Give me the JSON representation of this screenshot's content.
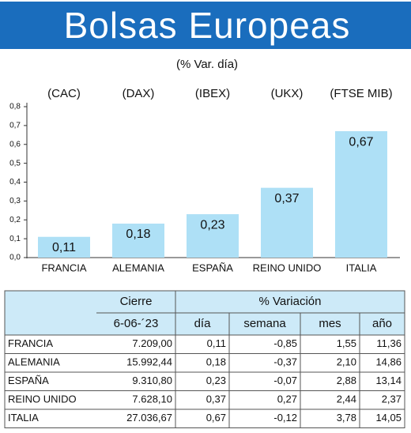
{
  "chart_data": {
    "type": "bar",
    "title": "Bolsas Europeas",
    "subtitle": "(% Var. día)",
    "indices": [
      "(CAC)",
      "(DAX)",
      "(IBEX)",
      "(UKX)",
      "(FTSE MIB)"
    ],
    "categories": [
      "FRANCIA",
      "ALEMANIA",
      "ESPAÑA",
      "REINO UNIDO",
      "ITALIA"
    ],
    "values": [
      0.11,
      0.18,
      0.23,
      0.37,
      0.67
    ],
    "value_labels": [
      "0,11",
      "0,18",
      "0,23",
      "0,37",
      "0,67"
    ],
    "color": "#aee0f6",
    "ylim": [
      0,
      0.8
    ],
    "yticks": [
      {
        "value": 0,
        "label": "0,0"
      },
      {
        "value": 0.1,
        "label": "0,1"
      },
      {
        "value": 0.2,
        "label": "0,2"
      },
      {
        "value": 0.3,
        "label": "0,3"
      },
      {
        "value": 0.4,
        "label": "0,4"
      },
      {
        "value": 0.5,
        "label": "0,5"
      },
      {
        "value": 0.6,
        "label": "0,6"
      },
      {
        "value": 0.7,
        "label": "0,7"
      },
      {
        "value": 0.8,
        "label": "0,8"
      }
    ]
  },
  "table": {
    "group_headers": [
      "Cierre",
      "% Variación"
    ],
    "headers": [
      "6-06-´23",
      "día",
      "semana",
      "mes",
      "año"
    ],
    "rows": [
      [
        "FRANCIA",
        "7.209,00",
        "0,11",
        "-0,85",
        "1,55",
        "11,36"
      ],
      [
        "ALEMANIA",
        "15.992,44",
        "0,18",
        "-0,37",
        "2,10",
        "14,86"
      ],
      [
        "ESPAÑA",
        "9.310,80",
        "0,23",
        "-0,07",
        "2,88",
        "13,14"
      ],
      [
        "REINO UNIDO",
        "7.628,10",
        "0,37",
        "0,27",
        "2,44",
        "2,37"
      ],
      [
        "ITALIA",
        "27.036,67",
        "0,67",
        "-0,12",
        "3,78",
        "14,05"
      ]
    ]
  }
}
